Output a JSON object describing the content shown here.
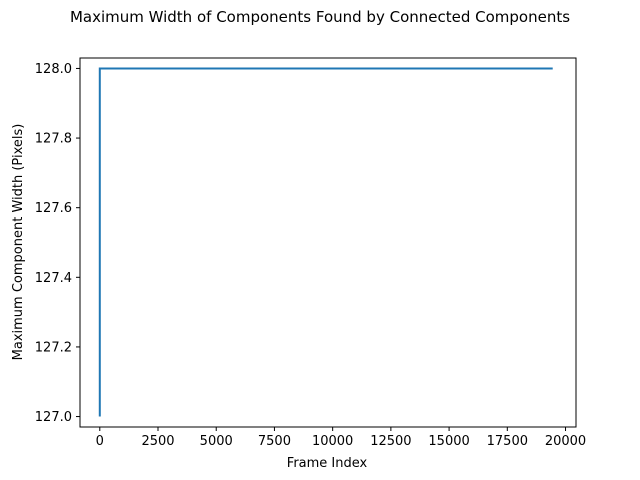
{
  "chart_data": {
    "type": "line",
    "title": "Maximum Width of Components Found by Connected Components",
    "xlabel": "Frame Index",
    "ylabel": "Maximum Component Width (Pixels)",
    "xlim": [
      -850,
      20450
    ],
    "ylim": [
      126.97,
      128.03
    ],
    "x_ticks": [
      0,
      2500,
      5000,
      7500,
      10000,
      12500,
      15000,
      17500,
      20000
    ],
    "x_tick_labels": [
      "0",
      "2500",
      "5000",
      "7500",
      "10000",
      "12500",
      "15000",
      "17500",
      "20000"
    ],
    "y_ticks": [
      127.0,
      127.2,
      127.4,
      127.6,
      127.8,
      128.0
    ],
    "y_tick_labels": [
      "127.0",
      "127.2",
      "127.4",
      "127.6",
      "127.8",
      "128.0"
    ],
    "grid": false,
    "series": [
      {
        "color": "#1f77b4",
        "x": [
          0,
          0,
          19450
        ],
        "y": [
          127.0,
          128.0,
          128.0
        ]
      }
    ]
  }
}
